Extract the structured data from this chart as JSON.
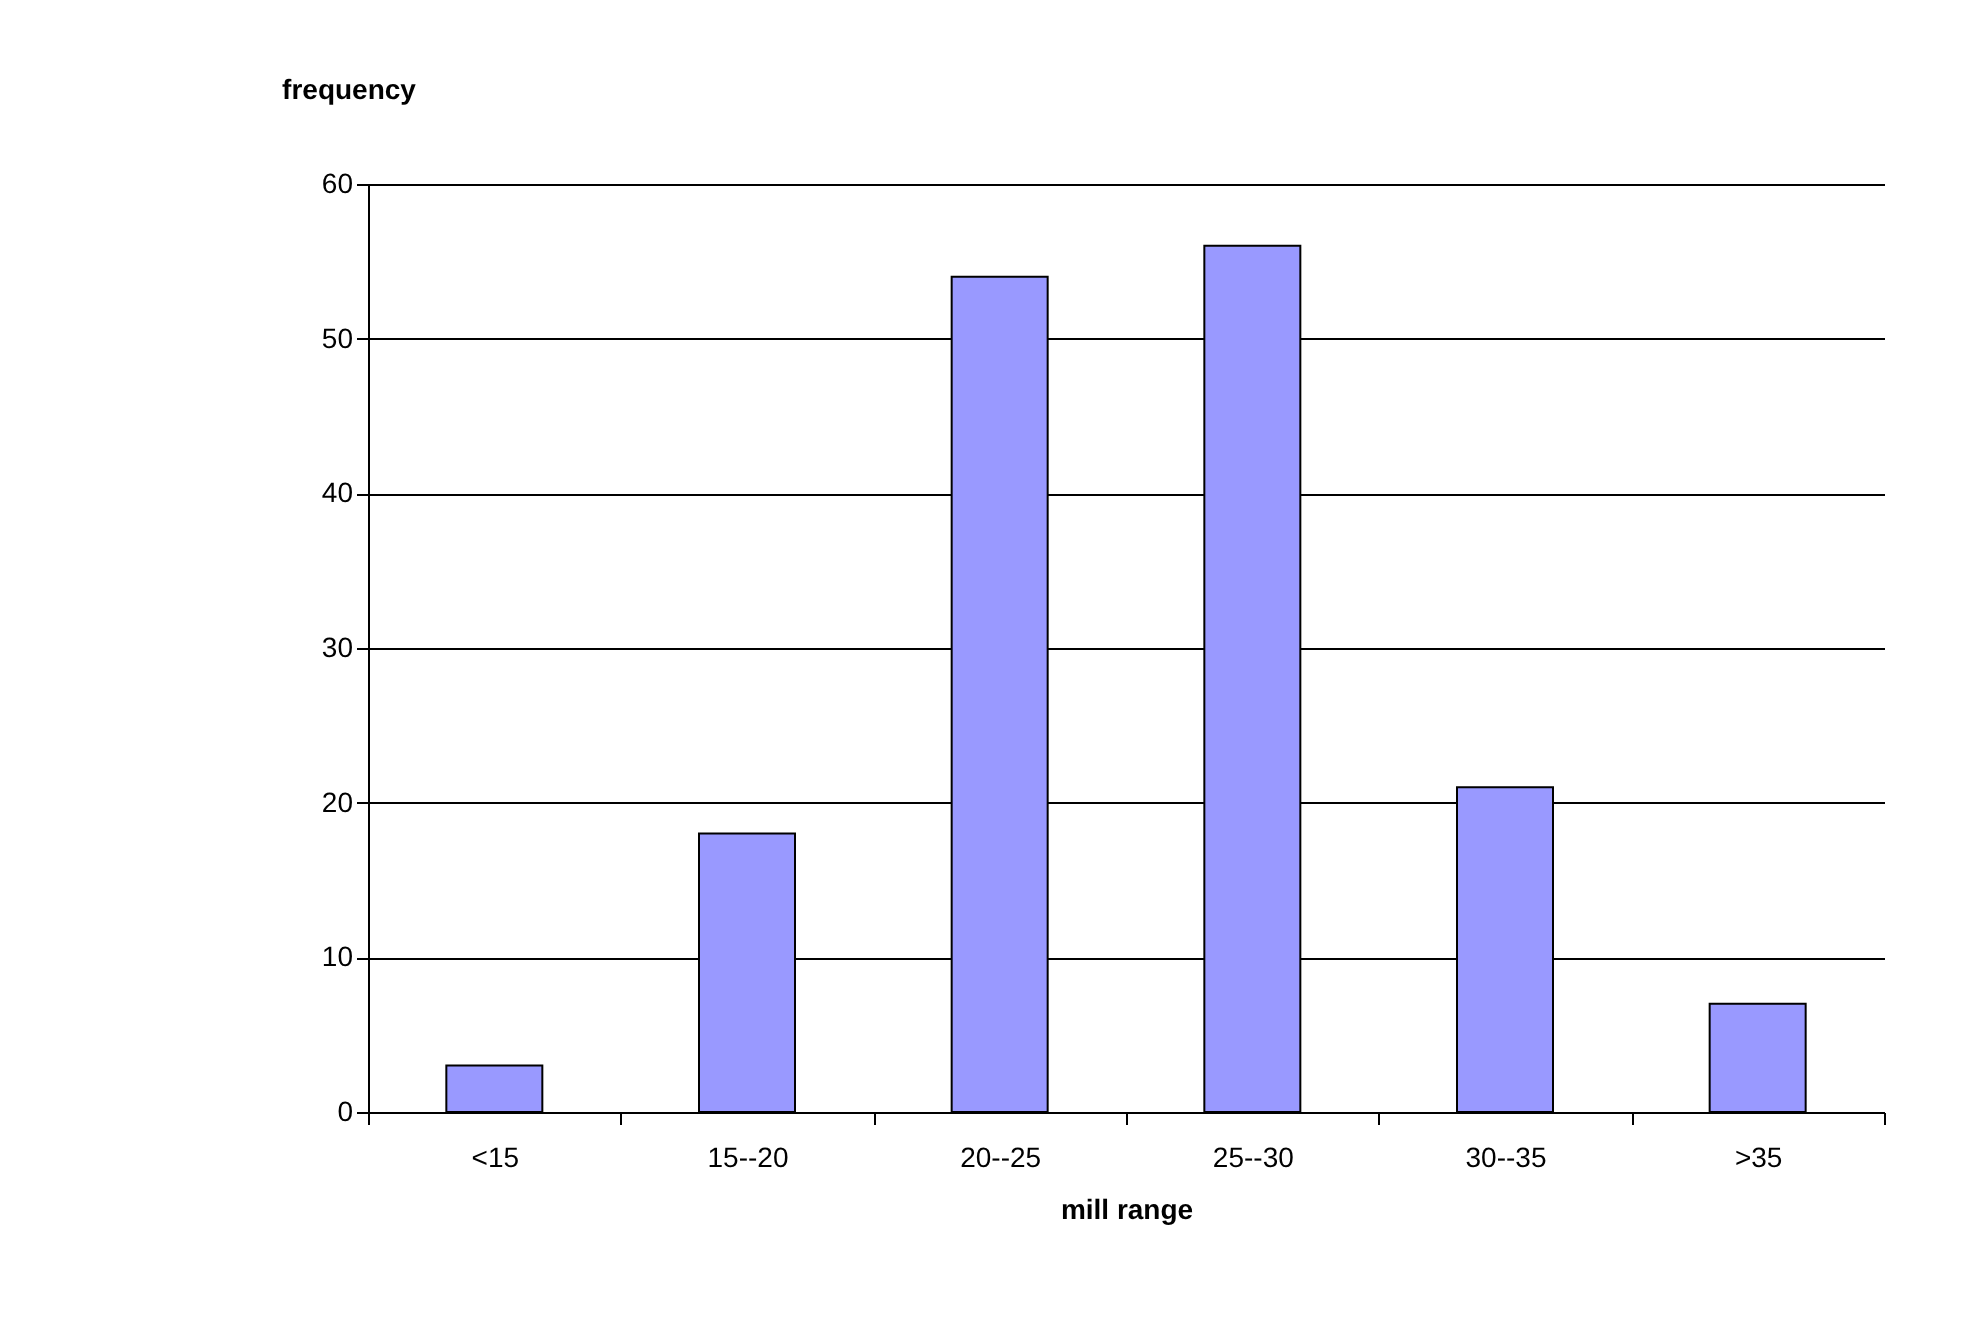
{
  "chart_data": {
    "type": "bar",
    "xlabel": "mill range",
    "ylabel": "frequency",
    "categories": [
      "<15",
      "15--20",
      "20--25",
      "25--30",
      "30--35",
      ">35"
    ],
    "values": [
      3,
      18,
      54,
      56,
      21,
      7
    ],
    "color": "#9999ff",
    "ylim": [
      0,
      60
    ],
    "yticks": [
      0,
      10,
      20,
      30,
      40,
      50,
      60
    ],
    "grid": "y"
  }
}
